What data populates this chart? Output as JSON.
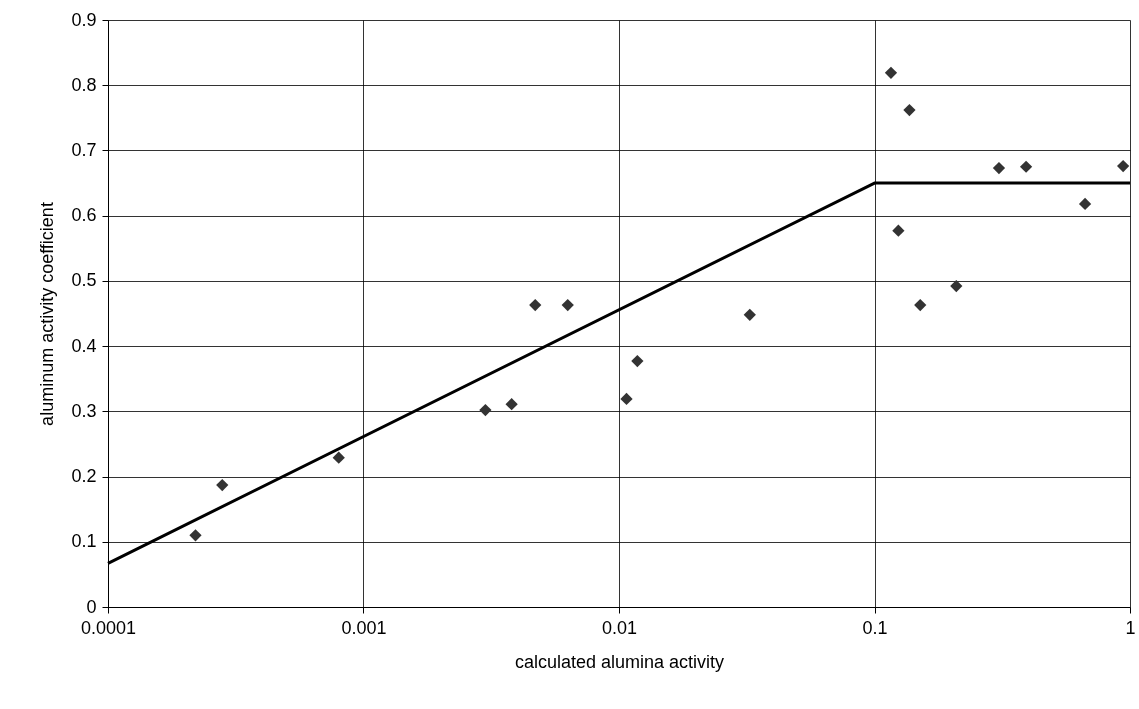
{
  "chart_data": {
    "type": "scatter",
    "xlabel": "calculated alumina activity",
    "ylabel": "aluminum activity coefficient",
    "log": "x",
    "xlim": [
      0.0001,
      1
    ],
    "xticks": [
      0.0001,
      0.001,
      0.01,
      0.1,
      1
    ],
    "ylim": [
      0,
      0.9
    ],
    "yticks": [
      0,
      0.1,
      0.2,
      0.3,
      0.4,
      0.5,
      0.6,
      0.7,
      0.8,
      0.9
    ],
    "grid": true,
    "series": [
      {
        "type": "scatter",
        "marker": "diamond",
        "color": "#333333",
        "x": [
          0.00022,
          0.00028,
          0.0008,
          0.003,
          0.0038,
          0.0047,
          0.0063,
          0.0107,
          0.0118,
          0.0325,
          0.116,
          0.124,
          0.137,
          0.151,
          0.209,
          0.307,
          0.392,
          0.667,
          0.94
        ],
        "values": [
          0.11,
          0.187,
          0.229,
          0.302,
          0.311,
          0.463,
          0.463,
          0.319,
          0.377,
          0.448,
          0.819,
          0.577,
          0.762,
          0.463,
          0.492,
          0.673,
          0.675,
          0.618,
          0.676
        ]
      },
      {
        "type": "line",
        "marker": "none",
        "line_style": "solid",
        "color": "#000000",
        "x": [
          0.0001,
          0.1,
          1
        ],
        "values": [
          0.067,
          0.65,
          0.65
        ]
      }
    ]
  }
}
